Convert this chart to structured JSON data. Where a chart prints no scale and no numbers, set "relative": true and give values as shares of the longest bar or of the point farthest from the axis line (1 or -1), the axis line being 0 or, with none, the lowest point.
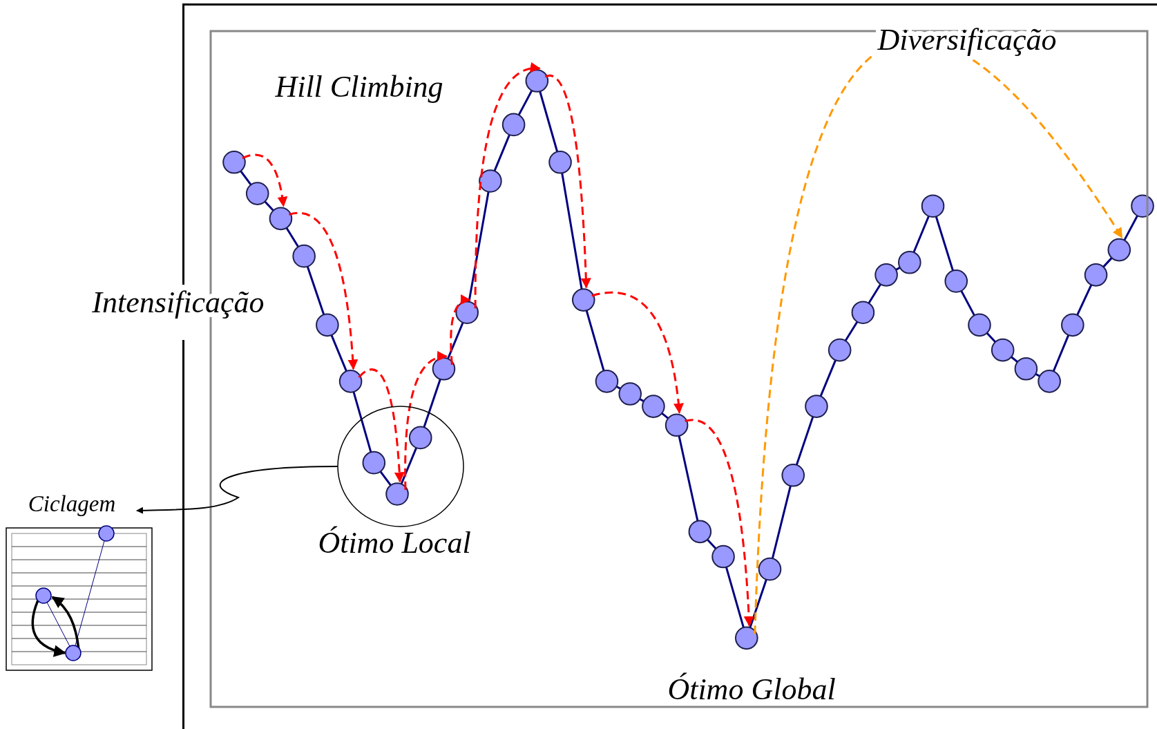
{
  "chart_data": {
    "type": "line",
    "relative": true,
    "marker": "circle",
    "line_style": "solid",
    "categories": [
      null,
      null,
      null,
      null,
      null,
      null,
      null,
      null,
      null,
      null,
      null,
      null,
      null,
      null,
      null,
      null,
      null,
      null,
      null,
      null,
      null,
      null,
      null,
      null,
      null,
      null,
      null,
      null,
      null,
      null,
      null,
      null,
      null,
      null,
      null,
      null,
      null,
      null,
      null,
      null
    ],
    "series": [
      {
        "color": "#000080",
        "values": [
          0.87,
          0.82,
          0.78,
          0.72,
          0.61,
          0.52,
          0.39,
          0.34,
          0.43,
          0.54,
          0.63,
          0.84,
          0.93,
          1.0,
          0.87,
          0.65,
          0.52,
          0.5,
          0.48,
          0.45,
          0.28,
          0.24,
          0.11,
          0.22,
          0.37,
          0.48,
          0.57,
          0.63,
          0.69,
          0.71,
          0.8,
          0.68,
          0.61,
          0.57,
          0.54,
          0.52,
          0.61,
          0.69,
          0.73,
          0.8
        ]
      }
    ],
    "annotations": [
      "Diversificação",
      "Hill Climbing",
      "Intensificação",
      "Ótimo Local",
      "Ótimo Global",
      "Ciclagem"
    ]
  }
}
